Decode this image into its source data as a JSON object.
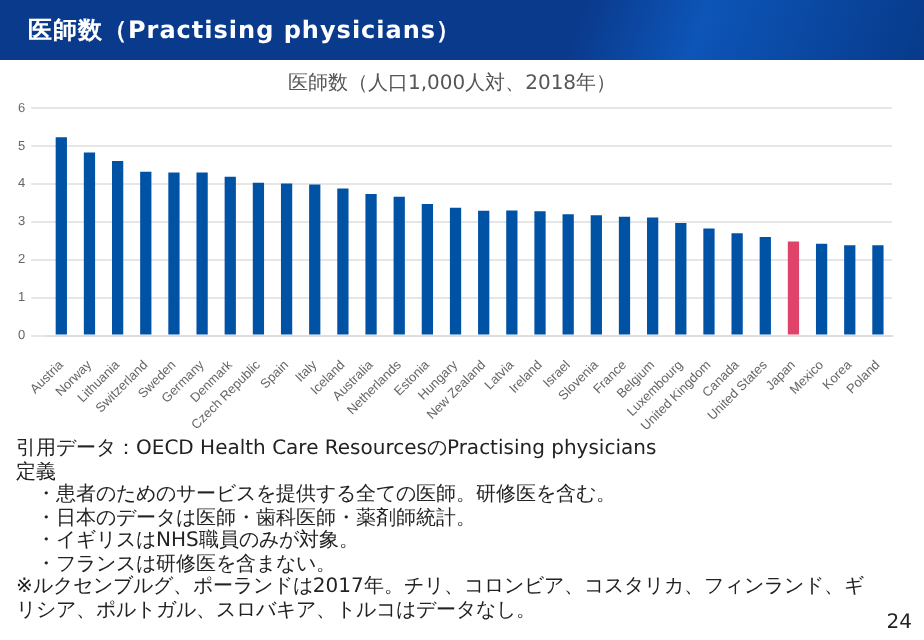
{
  "chart_data": {
    "type": "bar",
    "title": "医師数（Practising physicians）",
    "subtitle": "医師数（人口1,000人対、2018年）",
    "categories": [
      "Austria",
      "Norway",
      "Lithuania",
      "Switzerland",
      "Sweden",
      "Germany",
      "Denmark",
      "Czech Republic",
      "Spain",
      "Italy",
      "Iceland",
      "Australia",
      "Netherlands",
      "Estonia",
      "Hungary",
      "New Zealand",
      "Latvia",
      "Ireland",
      "Israel",
      "Slovenia",
      "France",
      "Belgium",
      "Luxembourg",
      "United Kingdom",
      "Canada",
      "United States",
      "Japan",
      "Mexico",
      "Korea",
      "Poland"
    ],
    "values": [
      5.23,
      4.83,
      4.6,
      4.32,
      4.3,
      4.3,
      4.19,
      4.03,
      4.01,
      3.98,
      3.88,
      3.73,
      3.66,
      3.47,
      3.37,
      3.29,
      3.3,
      3.28,
      3.2,
      3.17,
      3.13,
      3.11,
      2.97,
      2.82,
      2.7,
      2.6,
      2.48,
      2.42,
      2.38,
      2.38
    ],
    "colors": [
      "#0052a5",
      "#0052a5",
      "#0052a5",
      "#0052a5",
      "#0052a5",
      "#0052a5",
      "#0052a5",
      "#0052a5",
      "#0052a5",
      "#0052a5",
      "#0052a5",
      "#0052a5",
      "#0052a5",
      "#0052a5",
      "#0052a5",
      "#0052a5",
      "#0052a5",
      "#0052a5",
      "#0052a5",
      "#0052a5",
      "#0052a5",
      "#0052a5",
      "#0052a5",
      "#0052a5",
      "#0052a5",
      "#0052a5",
      "#e0436a",
      "#0052a5",
      "#0052a5",
      "#0052a5"
    ],
    "ylim": [
      0,
      6
    ],
    "yticks": [
      0,
      1,
      2,
      3,
      4,
      5,
      6
    ],
    "grid": "y",
    "legend": false,
    "annotations": [
      "引用データ：OECD Health Care ResourcesのPractising physicians",
      "定義",
      "・患者のためのサービスを提供する全ての医師。研修医を含む。",
      "・日本のデータは医師・歯科医師・薬剤師統計。",
      "・イギリスはNHS職員のみが対象。",
      "・フランスは研修医を含まない。",
      "※ルクセンブルグ、ポーランドは2017年。チリ、コロンビア、コスタリカ、フィンランド、ギリシア、ポルトガル、スロバキア、トルコはデータなし。",
      "24"
    ]
  }
}
